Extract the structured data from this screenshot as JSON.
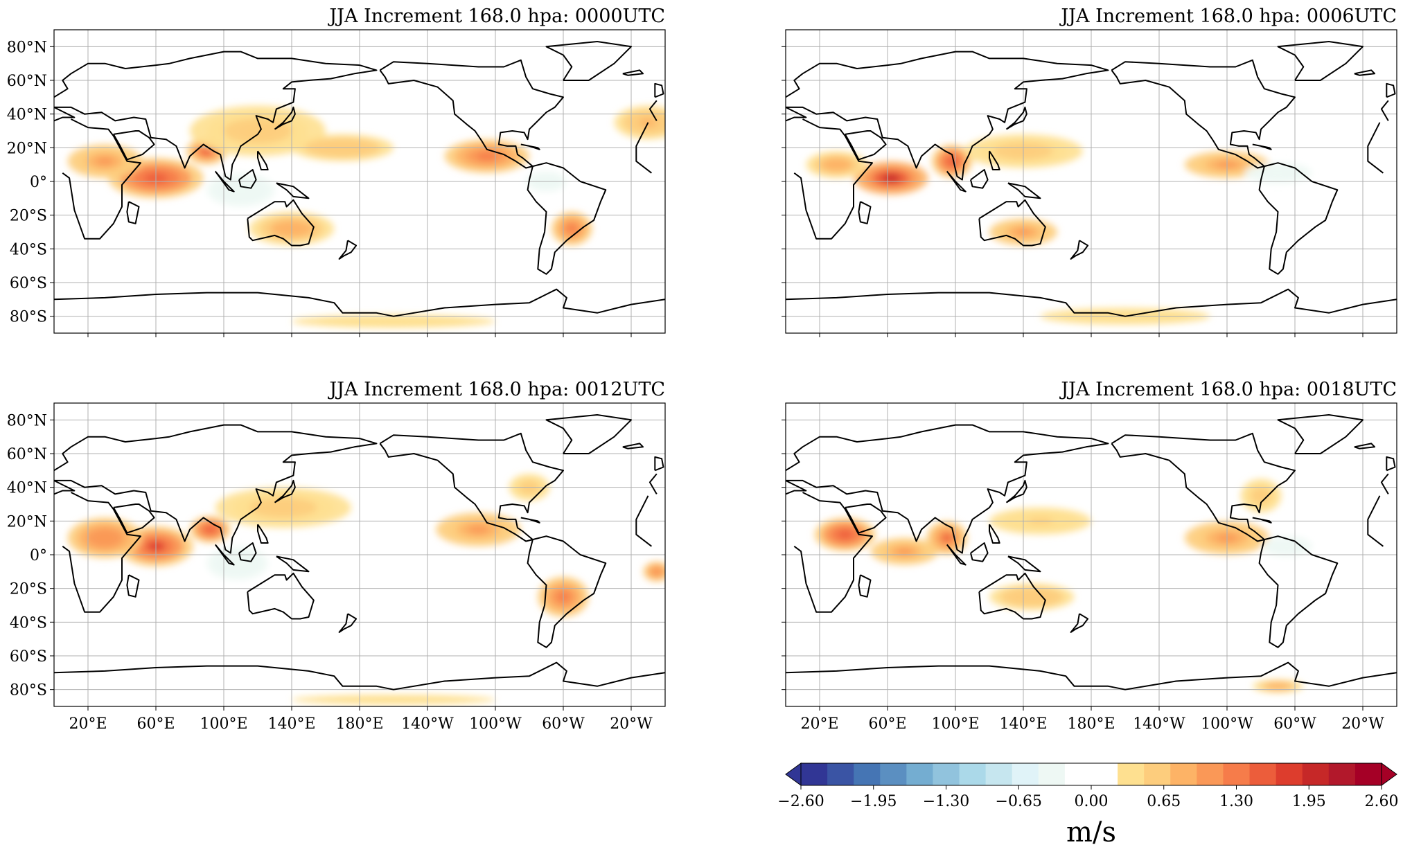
{
  "panels": [
    {
      "title": "JJA Increment 168.0 hpa: 0000UTC",
      "lat_labels_shown": true,
      "lon_labels_shown": false,
      "features": [
        {
          "lon": 60,
          "lat": 2,
          "rx": 28,
          "ry": 12,
          "v": 1.9
        },
        {
          "lon": 90,
          "lat": 18,
          "rx": 12,
          "ry": 8,
          "v": 1.8
        },
        {
          "lon": 30,
          "lat": 12,
          "rx": 22,
          "ry": 10,
          "v": 1.2
        },
        {
          "lon": 120,
          "lat": 30,
          "rx": 40,
          "ry": 15,
          "v": 0.7
        },
        {
          "lon": 170,
          "lat": 20,
          "rx": 30,
          "ry": 8,
          "v": 0.8
        },
        {
          "lon": 255,
          "lat": 15,
          "rx": 25,
          "ry": 10,
          "v": 1.5
        },
        {
          "lon": 305,
          "lat": -28,
          "rx": 12,
          "ry": 10,
          "v": 1.5
        },
        {
          "lon": 140,
          "lat": -28,
          "rx": 25,
          "ry": 10,
          "v": 1.0
        },
        {
          "lon": 350,
          "lat": 35,
          "rx": 20,
          "ry": 10,
          "v": 0.9
        },
        {
          "lon": 200,
          "lat": -83,
          "rx": 60,
          "ry": 4,
          "v": 0.4
        },
        {
          "lon": 110,
          "lat": -5,
          "rx": 20,
          "ry": 10,
          "v": -0.5
        },
        {
          "lon": 290,
          "lat": 0,
          "rx": 12,
          "ry": 6,
          "v": -0.4
        }
      ]
    },
    {
      "title": "JJA Increment 168.0 hpa: 0006UTC",
      "lat_labels_shown": false,
      "lon_labels_shown": false,
      "features": [
        {
          "lon": 62,
          "lat": 2,
          "rx": 22,
          "ry": 10,
          "v": 2.4
        },
        {
          "lon": 98,
          "lat": 12,
          "rx": 12,
          "ry": 10,
          "v": 1.9
        },
        {
          "lon": 30,
          "lat": 10,
          "rx": 18,
          "ry": 8,
          "v": 1.0
        },
        {
          "lon": 140,
          "lat": 18,
          "rx": 35,
          "ry": 10,
          "v": 0.7
        },
        {
          "lon": 260,
          "lat": 10,
          "rx": 25,
          "ry": 8,
          "v": 1.3
        },
        {
          "lon": 140,
          "lat": -30,
          "rx": 20,
          "ry": 8,
          "v": 1.2
        },
        {
          "lon": 200,
          "lat": -80,
          "rx": 50,
          "ry": 5,
          "v": 0.4
        },
        {
          "lon": 290,
          "lat": 5,
          "rx": 20,
          "ry": 6,
          "v": -0.4
        }
      ]
    },
    {
      "title": "JJA Increment 168.0 hpa: 0012UTC",
      "lat_labels_shown": true,
      "lon_labels_shown": true,
      "features": [
        {
          "lon": 60,
          "lat": 5,
          "rx": 22,
          "ry": 12,
          "v": 2.0
        },
        {
          "lon": 92,
          "lat": 15,
          "rx": 12,
          "ry": 8,
          "v": 1.9
        },
        {
          "lon": 30,
          "lat": 10,
          "rx": 22,
          "ry": 12,
          "v": 1.4
        },
        {
          "lon": 135,
          "lat": 28,
          "rx": 40,
          "ry": 12,
          "v": 0.7
        },
        {
          "lon": 250,
          "lat": 15,
          "rx": 25,
          "ry": 10,
          "v": 1.3
        },
        {
          "lon": 300,
          "lat": -25,
          "rx": 15,
          "ry": 12,
          "v": 1.5
        },
        {
          "lon": 280,
          "lat": 40,
          "rx": 12,
          "ry": 8,
          "v": 0.7
        },
        {
          "lon": 355,
          "lat": -10,
          "rx": 8,
          "ry": 6,
          "v": 1.4
        },
        {
          "lon": 200,
          "lat": -86,
          "rx": 60,
          "ry": 3,
          "v": 0.4
        },
        {
          "lon": 108,
          "lat": -5,
          "rx": 18,
          "ry": 10,
          "v": -0.5
        }
      ]
    },
    {
      "title": "JJA Increment 168.0 hpa: 0018UTC",
      "lat_labels_shown": false,
      "lon_labels_shown": true,
      "features": [
        {
          "lon": 35,
          "lat": 12,
          "rx": 18,
          "ry": 10,
          "v": 1.9
        },
        {
          "lon": 95,
          "lat": 10,
          "rx": 12,
          "ry": 10,
          "v": 1.7
        },
        {
          "lon": 70,
          "lat": 2,
          "rx": 20,
          "ry": 8,
          "v": 1.2
        },
        {
          "lon": 260,
          "lat": 10,
          "rx": 25,
          "ry": 10,
          "v": 1.3
        },
        {
          "lon": 280,
          "lat": 35,
          "rx": 12,
          "ry": 10,
          "v": 0.7
        },
        {
          "lon": 145,
          "lat": -25,
          "rx": 25,
          "ry": 8,
          "v": 0.8
        },
        {
          "lon": 150,
          "lat": 20,
          "rx": 30,
          "ry": 8,
          "v": 0.6
        },
        {
          "lon": 290,
          "lat": -78,
          "rx": 15,
          "ry": 4,
          "v": 1.0
        },
        {
          "lon": 295,
          "lat": 5,
          "rx": 15,
          "ry": 6,
          "v": -0.5
        }
      ]
    }
  ],
  "axes": {
    "lon_ticks": [
      "20°E",
      "60°E",
      "100°E",
      "140°E",
      "180°E",
      "140°W",
      "100°W",
      "60°W",
      "20°W"
    ],
    "lon_values": [
      20,
      60,
      100,
      140,
      180,
      220,
      260,
      300,
      340
    ],
    "lat_ticks": [
      "80°N",
      "60°N",
      "40°N",
      "20°N",
      "0°",
      "20°S",
      "40°S",
      "60°S",
      "80°S"
    ],
    "lat_values": [
      80,
      60,
      40,
      20,
      0,
      -20,
      -40,
      -60,
      -80
    ],
    "lon_range": [
      0,
      360
    ],
    "lat_range": [
      -90,
      90
    ]
  },
  "colorbar": {
    "tick_labels": [
      "−2.60",
      "−1.95",
      "−1.30",
      "−0.65",
      "0.00",
      "0.65",
      "1.30",
      "1.95",
      "2.60"
    ],
    "range": [
      -2.6,
      2.6
    ],
    "unit_label": "m/s",
    "colors": [
      "#313695",
      "#3a54a4",
      "#4575b4",
      "#5b8fc1",
      "#74add1",
      "#91c3dd",
      "#abd9e9",
      "#c6e6ef",
      "#e0f3f8",
      "#eef8f4",
      "#ffffff",
      "#ffffff",
      "#fee090",
      "#fdcd7d",
      "#fdb366",
      "#fa9857",
      "#f67c4a",
      "#ec5d3b",
      "#dd3d2d",
      "#c62828",
      "#b2182b",
      "#a50026"
    ]
  },
  "colors": {
    "coastline": "#000000",
    "grid": "#b0b0b0"
  }
}
